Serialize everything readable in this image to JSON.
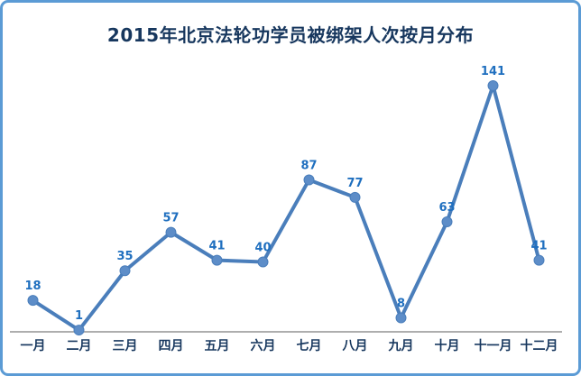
{
  "chart_data": {
    "type": "line",
    "title": "2015年北京法轮功学员被绑架人次按月分布",
    "categories": [
      "一月",
      "二月",
      "三月",
      "四月",
      "五月",
      "六月",
      "七月",
      "八月",
      "九月",
      "十月",
      "十一月",
      "十二月"
    ],
    "values": [
      18,
      1,
      35,
      57,
      41,
      40,
      87,
      77,
      8,
      63,
      141,
      41
    ],
    "xlabel": "",
    "ylabel": "",
    "ylim": [
      0,
      150
    ],
    "grid": false,
    "legend": false,
    "data_labels": true,
    "colors": {
      "line": "#4A7EBB",
      "marker_fill": "#5D8DC8",
      "data_label": "#1F6FBF",
      "axis_label": "#17375E",
      "title": "#17375E",
      "axis_line": "#949494",
      "frame_border": "#5B9BD5"
    }
  }
}
